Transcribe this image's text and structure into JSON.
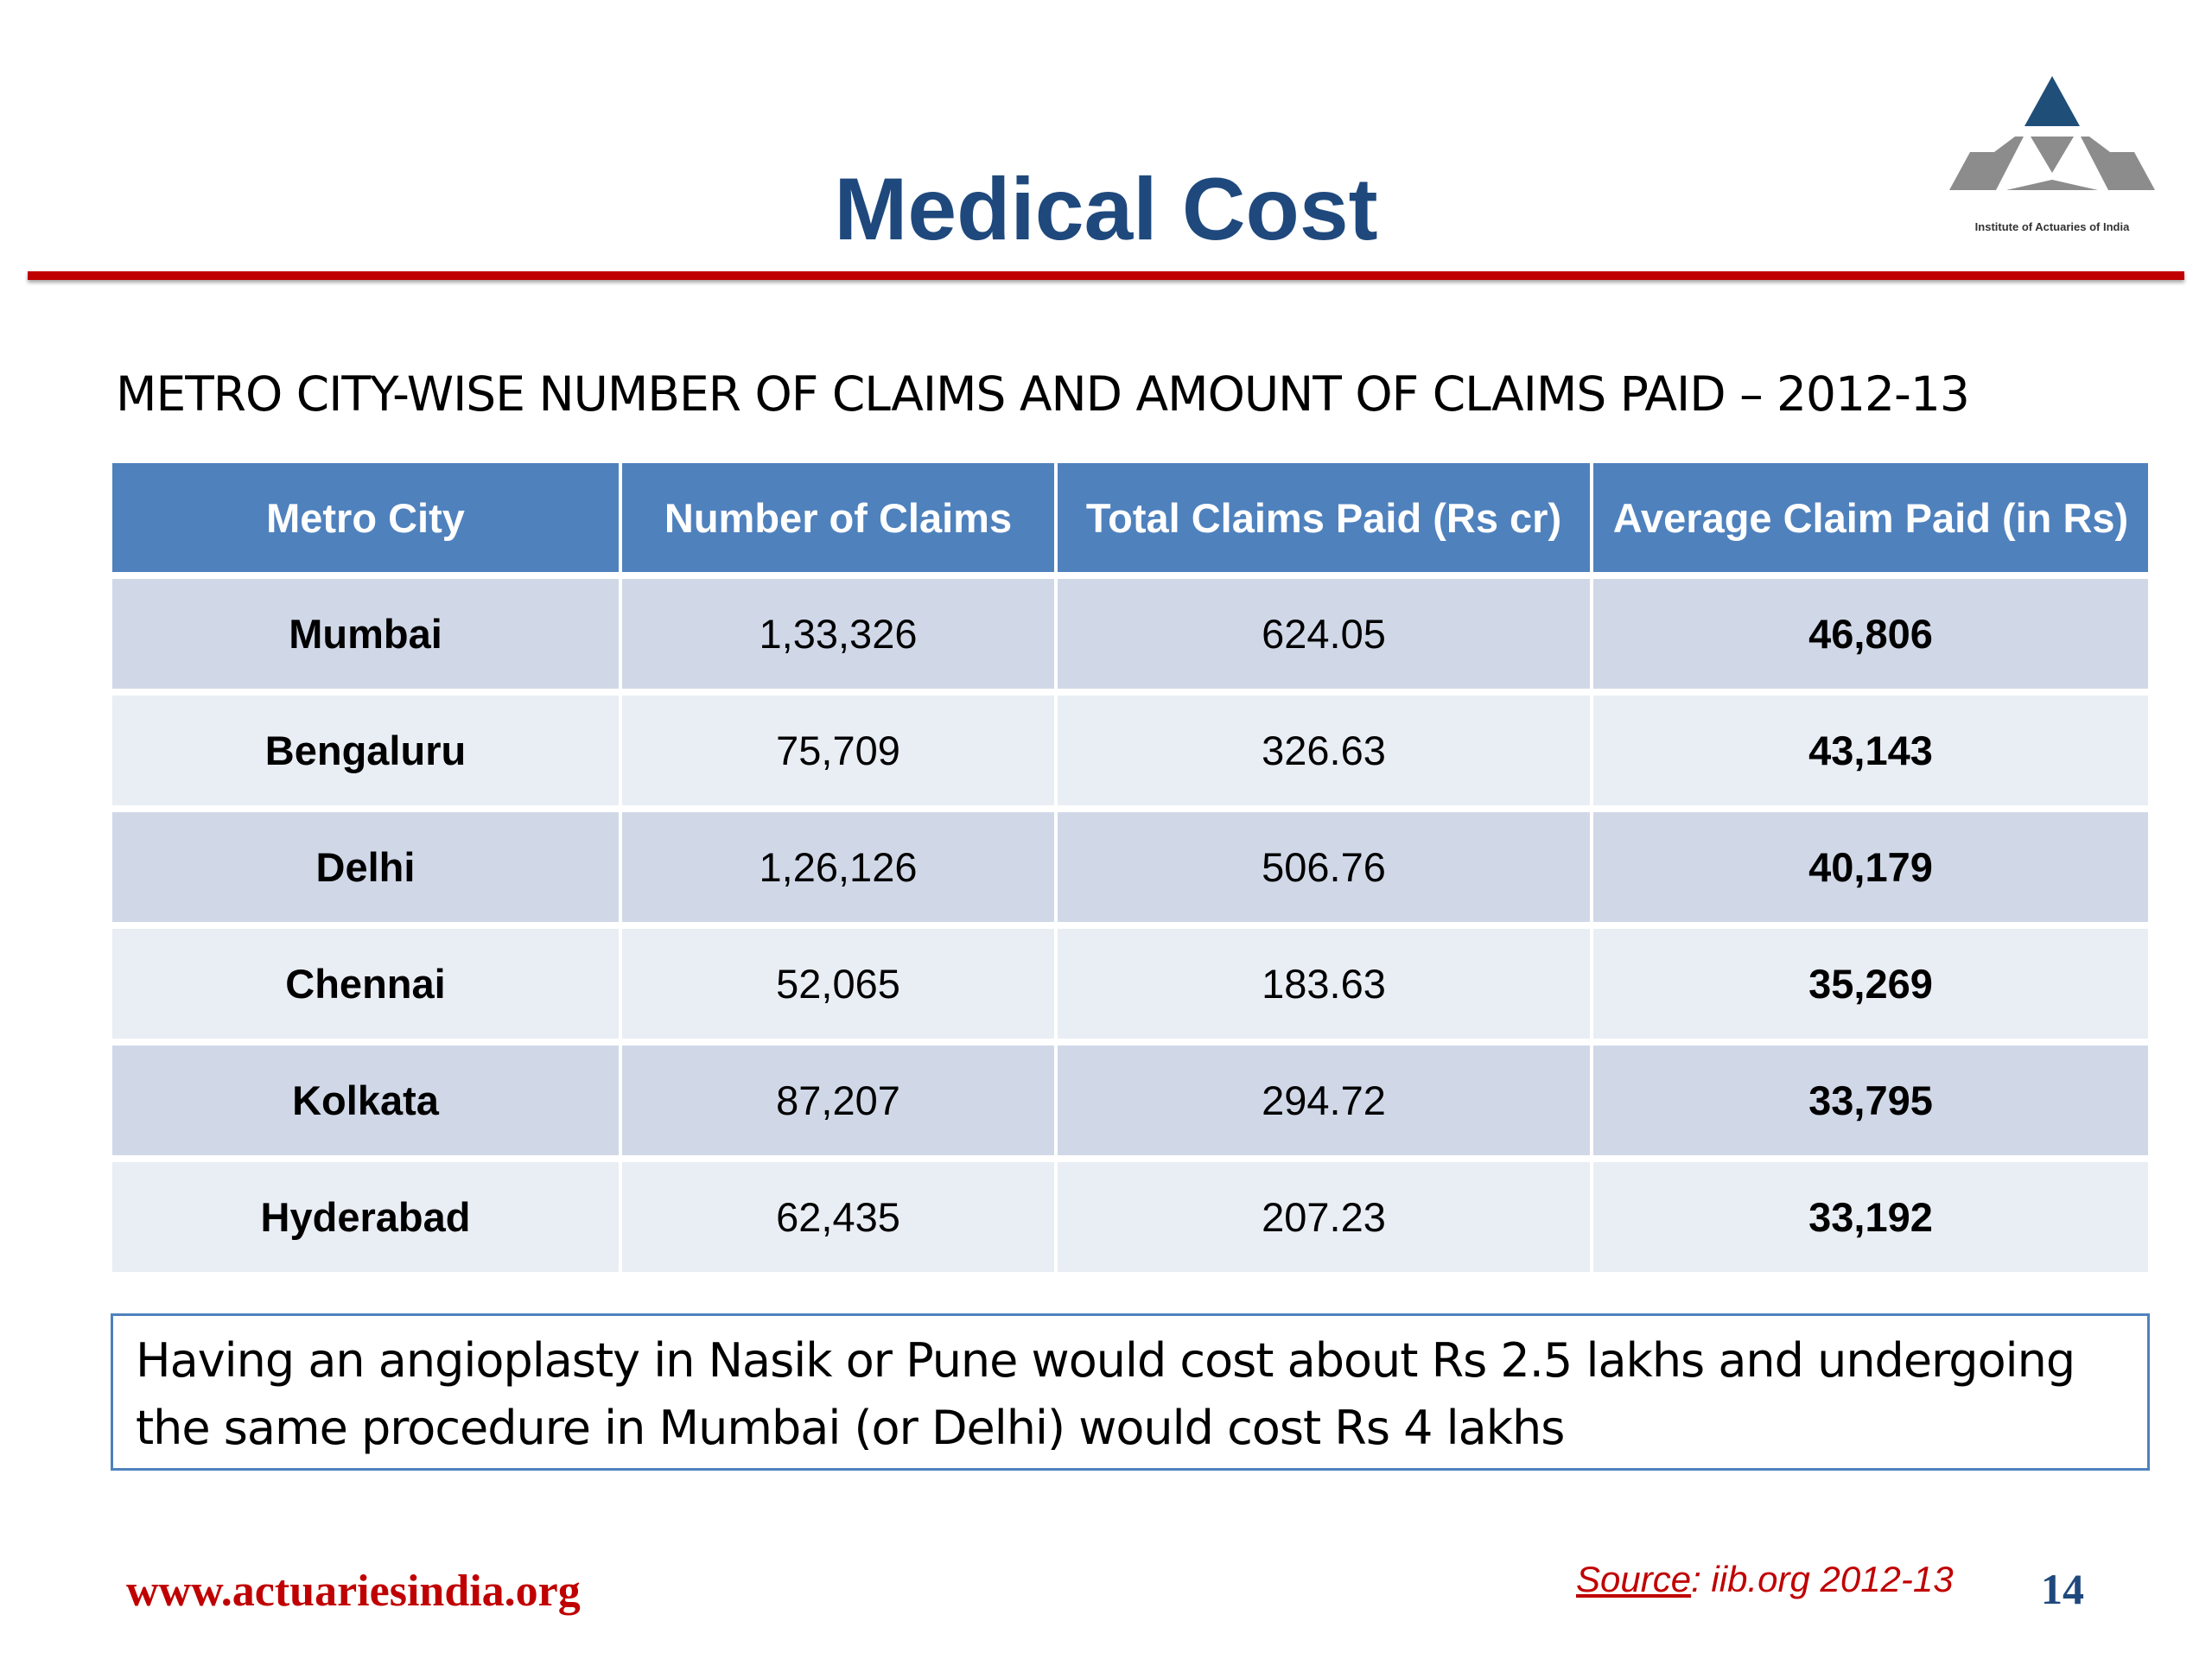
{
  "slide": {
    "title": "Medical Cost",
    "subtitle": "METRO CITY-WISE NUMBER OF CLAIMS AND AMOUNT OF CLAIMS PAID – 2012-13"
  },
  "logo": {
    "icon": "triangle-logo-icon",
    "text": "Institute of Actuaries of India",
    "colors": {
      "top": "#1f4e79",
      "bottom": "#8c8c8c"
    }
  },
  "table": {
    "headers": [
      "Metro City",
      "Number of Claims",
      "Total Claims Paid (Rs cr)",
      "Average Claim Paid (in Rs)"
    ],
    "rows": [
      [
        "Mumbai",
        "1,33,326",
        "624.05",
        "46,806"
      ],
      [
        "Bengaluru",
        "75,709",
        "326.63",
        "43,143"
      ],
      [
        "Delhi",
        "1,26,126",
        "506.76",
        "40,179"
      ],
      [
        "Chennai",
        "52,065",
        "183.63",
        "35,269"
      ],
      [
        "Kolkata",
        "87,207",
        "294.72",
        "33,795"
      ],
      [
        "Hyderabad",
        "62,435",
        "207.23",
        "33,192"
      ]
    ]
  },
  "note": {
    "line1": "Having an angioplasty in Nasik or Pune would cost about Rs 2.5 lakhs and undergoing",
    "line2": "the same procedure in Mumbai (or Delhi) would cost Rs 4 lakhs"
  },
  "footer": {
    "website": "www.actuariesindia.org",
    "source_label": "Source",
    "source_text": ": iib.org 2012-13",
    "page_number": "14"
  },
  "colors": {
    "title": "#1f497d",
    "rule": "#c00000",
    "header_bg": "#4f81bd",
    "row_odd": "#d0d8e8",
    "row_even": "#e9edf4",
    "footer_red": "#c00000"
  }
}
